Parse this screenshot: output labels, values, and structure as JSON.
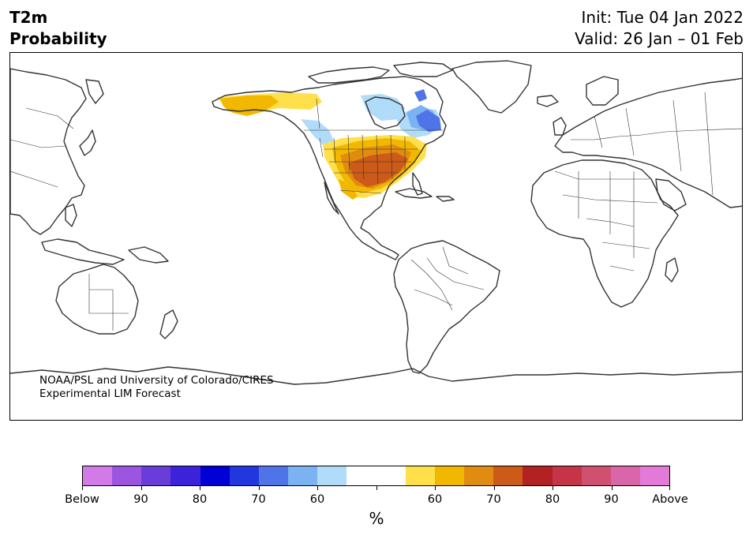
{
  "header": {
    "title_line1": "T2m",
    "title_line2": "Probability",
    "init": "Init: Tue 04 Jan 2022",
    "valid": "Valid: 26 Jan – 01 Feb"
  },
  "credit": {
    "line1": "NOAA/PSL and University of Colorado/CIRES",
    "line2": "Experimental LIM Forecast"
  },
  "colorbar": {
    "colors": [
      "#d17ae8",
      "#9b55e0",
      "#6a3cd8",
      "#3c22d8",
      "#0000d6",
      "#2238de",
      "#4e74e8",
      "#7ab2f2",
      "#b0dcfa",
      "#ffffff",
      "#ffffff",
      "#ffe04a",
      "#f2b800",
      "#e08c10",
      "#cc5a18",
      "#b22222",
      "#c43548",
      "#d05070",
      "#d866a8",
      "#e47ad8"
    ],
    "labels": [
      "Below",
      "90",
      "80",
      "70",
      "60",
      "",
      "60",
      "70",
      "80",
      "90",
      "Above"
    ],
    "unit": "%"
  },
  "map": {
    "coastline_color": "#333333",
    "warm_colors": {
      "p60": "#ffe04a",
      "p70": "#f2b800",
      "p80": "#e08c10",
      "p90": "#cc5a18"
    },
    "cool_colors": {
      "p60": "#b0dcfa",
      "p70": "#7ab2f2",
      "p80": "#4e74e8",
      "p90": "#2238de"
    }
  }
}
